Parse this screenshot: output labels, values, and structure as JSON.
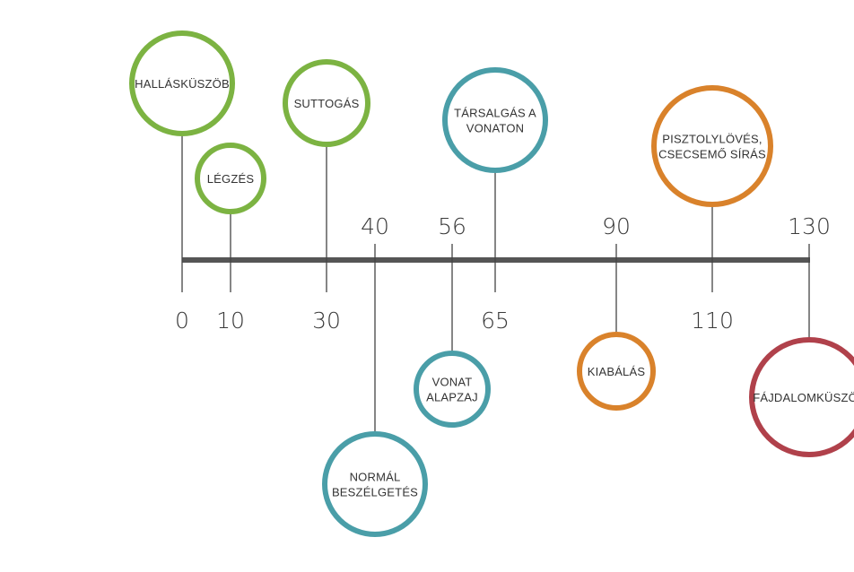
{
  "colors": {
    "green": "#7cb342",
    "teal": "#4a9ea8",
    "orange": "#d9822b",
    "red": "#b0414b",
    "axis": "#555555",
    "connector": "#444444"
  },
  "events": [
    {
      "value": "0",
      "label_lines": [
        "HALLÁSKÜSZÖB"
      ],
      "color": "green"
    },
    {
      "value": "10",
      "label_lines": [
        "LÉGZÉS"
      ],
      "color": "green"
    },
    {
      "value": "30",
      "label_lines": [
        "SUTTOGÁS"
      ],
      "color": "green"
    },
    {
      "value": "40",
      "label_lines": [
        "NORMÁL",
        "BESZÉLGETÉS"
      ],
      "color": "teal"
    },
    {
      "value": "56",
      "label_lines": [
        "VONAT",
        "ALAPZAJ"
      ],
      "color": "teal"
    },
    {
      "value": "65",
      "label_lines": [
        "TÁRSALGÁS A",
        "VONATON"
      ],
      "color": "teal"
    },
    {
      "value": "90",
      "label_lines": [
        "KIABÁLÁS"
      ],
      "color": "orange"
    },
    {
      "value": "110",
      "label_lines": [
        "PISZTOLYLÖVÉS,",
        "CSECSEMŐ SÍRÁS"
      ],
      "color": "orange"
    },
    {
      "value": "130",
      "label_lines": [
        "FÁJDALOMKÜSZÖB"
      ],
      "color": "red"
    }
  ]
}
